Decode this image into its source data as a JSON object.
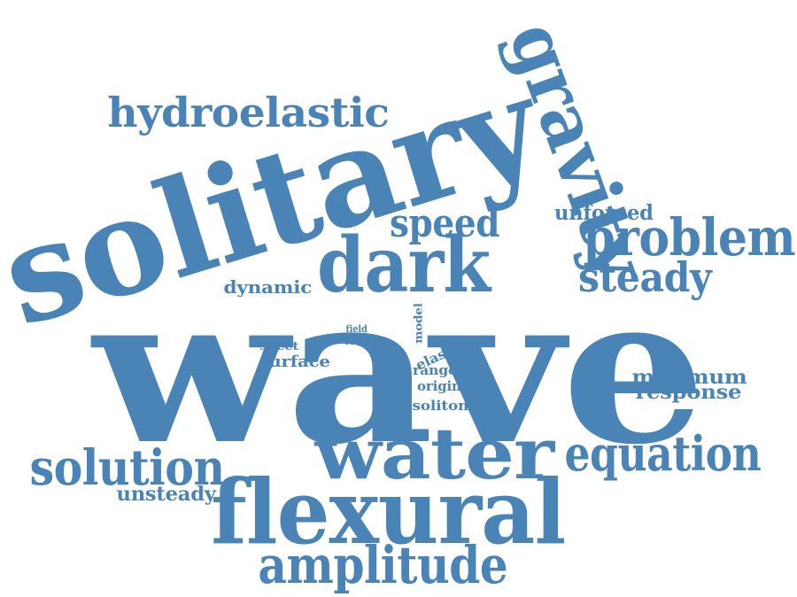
{
  "word_cloud": {
    "color": "#4a83b6",
    "background": "#ffffff",
    "words": [
      {
        "text": "wave",
        "orientation": "horizontal"
      },
      {
        "text": "solitary",
        "orientation": "rotated"
      },
      {
        "text": "flexural",
        "orientation": "horizontal"
      },
      {
        "text": "water",
        "orientation": "horizontal"
      },
      {
        "text": "gravity",
        "orientation": "vertical"
      },
      {
        "text": "dark",
        "orientation": "horizontal"
      },
      {
        "text": "problem",
        "orientation": "horizontal"
      },
      {
        "text": "amplitude",
        "orientation": "horizontal"
      },
      {
        "text": "solution",
        "orientation": "horizontal"
      },
      {
        "text": "equation",
        "orientation": "horizontal"
      },
      {
        "text": "hydroelastic",
        "orientation": "horizontal"
      },
      {
        "text": "steady",
        "orientation": "horizontal"
      },
      {
        "text": "speed",
        "orientation": "horizontal"
      },
      {
        "text": "unforced",
        "orientation": "horizontal"
      },
      {
        "text": "dynamic",
        "orientation": "horizontal"
      },
      {
        "text": "unsteady",
        "orientation": "horizontal"
      },
      {
        "text": "minimum",
        "orientation": "horizontal"
      },
      {
        "text": "response",
        "orientation": "horizontal"
      },
      {
        "text": "surface",
        "orientation": "horizontal"
      },
      {
        "text": "sheet",
        "orientation": "horizontal"
      },
      {
        "text": "field",
        "orientation": "horizontal"
      },
      {
        "text": "load",
        "orientation": "horizontal"
      },
      {
        "text": "model",
        "orientation": "vertical"
      },
      {
        "text": "elastic",
        "orientation": "horizontal"
      },
      {
        "text": "range",
        "orientation": "horizontal"
      },
      {
        "text": "origin",
        "orientation": "horizontal"
      },
      {
        "text": "soliton",
        "orientation": "horizontal"
      }
    ]
  }
}
